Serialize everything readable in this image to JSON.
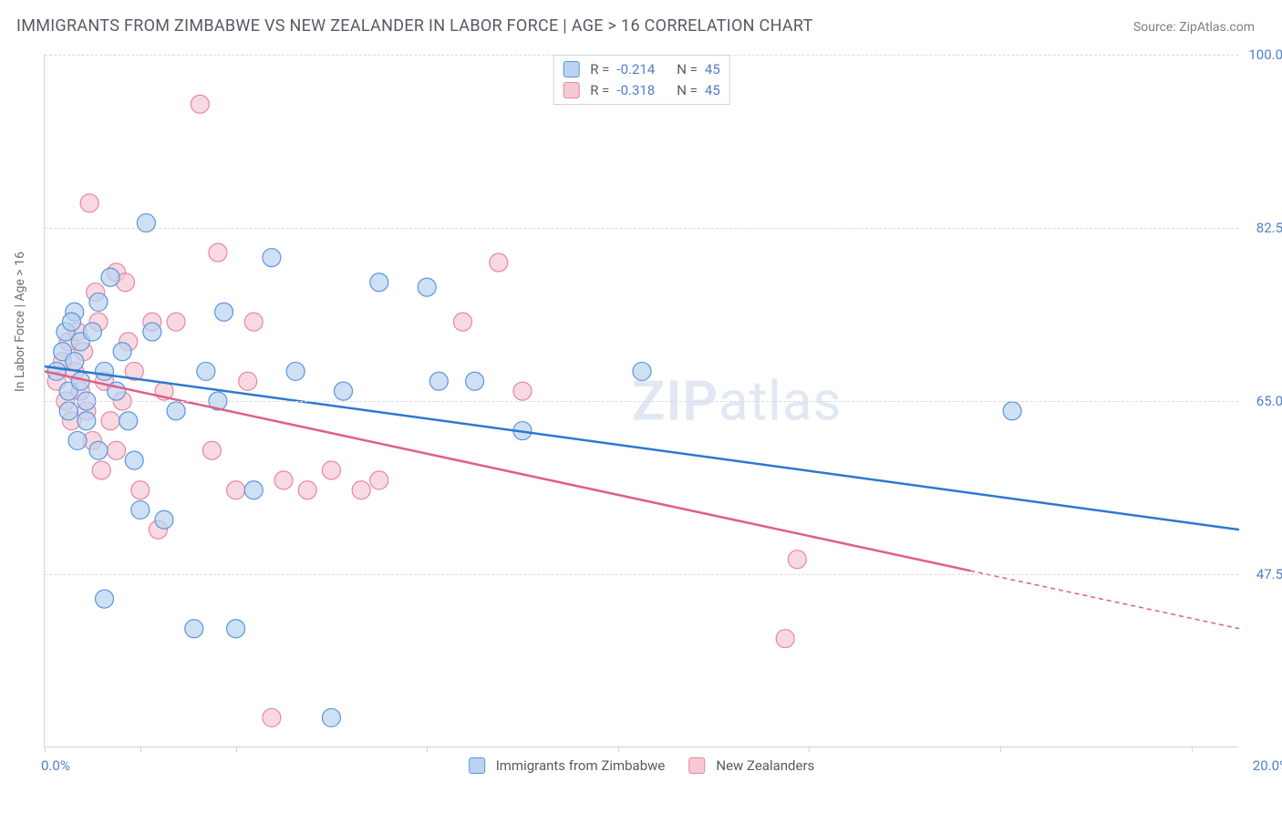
{
  "header": {
    "title": "IMMIGRANTS FROM ZIMBABWE VS NEW ZEALANDER IN LABOR FORCE | AGE > 16 CORRELATION CHART",
    "source": "Source: ZipAtlas.com"
  },
  "chart": {
    "type": "scatter",
    "ylabel": "In Labor Force | Age > 16",
    "xlim": [
      0.0,
      20.0
    ],
    "ylim": [
      30.0,
      100.0
    ],
    "xlim_labels": {
      "min": "0.0%",
      "max": "20.0%"
    },
    "xtick_positions_pct": [
      0,
      8,
      16,
      32,
      48,
      64,
      80,
      96
    ],
    "ytick_labels": [
      "100.0%",
      "82.5%",
      "65.0%",
      "47.5%"
    ],
    "ytick_values": [
      100.0,
      82.5,
      65.0,
      47.5
    ],
    "background_color": "#ffffff",
    "grid_color": "#d8dbe0",
    "axis_color": "#cfd3d9",
    "label_color": "#4f7ecb",
    "watermark": "ZIPatlas",
    "series": [
      {
        "key": "zimbabwe",
        "label": "Immigrants from Zimbabwe",
        "marker_fill": "#b9d3f0",
        "marker_stroke": "#5a95dd",
        "marker_radius": 10,
        "marker_opacity": 0.7,
        "line_color": "#2f77d1",
        "line_width": 2.5,
        "r": "-0.214",
        "n": "45",
        "trend": {
          "x1": 0.0,
          "y1": 68.5,
          "x2": 20.0,
          "y2": 52.0
        },
        "points": [
          [
            0.2,
            68
          ],
          [
            0.3,
            70
          ],
          [
            0.35,
            72
          ],
          [
            0.4,
            66
          ],
          [
            0.4,
            64
          ],
          [
            0.5,
            69
          ],
          [
            0.5,
            74
          ],
          [
            0.6,
            71
          ],
          [
            0.6,
            67
          ],
          [
            0.7,
            63
          ],
          [
            0.7,
            65
          ],
          [
            0.8,
            72
          ],
          [
            0.9,
            75
          ],
          [
            0.9,
            60
          ],
          [
            1.0,
            68
          ],
          [
            1.1,
            77.5
          ],
          [
            1.2,
            66
          ],
          [
            1.3,
            70
          ],
          [
            1.4,
            63
          ],
          [
            1.5,
            59
          ],
          [
            1.7,
            83
          ],
          [
            1.8,
            72
          ],
          [
            2.0,
            53
          ],
          [
            2.2,
            64
          ],
          [
            2.5,
            42
          ],
          [
            2.7,
            68
          ],
          [
            3.0,
            74
          ],
          [
            3.2,
            42
          ],
          [
            3.5,
            56
          ],
          [
            3.8,
            79.5
          ],
          [
            4.2,
            68
          ],
          [
            4.8,
            33
          ],
          [
            5.0,
            66
          ],
          [
            5.6,
            77
          ],
          [
            6.4,
            76.5
          ],
          [
            6.6,
            67
          ],
          [
            8.0,
            62
          ],
          [
            10.0,
            68
          ],
          [
            7.2,
            67
          ],
          [
            1.0,
            45
          ],
          [
            1.6,
            54
          ],
          [
            2.9,
            65
          ],
          [
            0.45,
            73
          ],
          [
            0.55,
            61
          ],
          [
            16.2,
            64
          ]
        ]
      },
      {
        "key": "newzealand",
        "label": "New Zealanders",
        "marker_fill": "#f6c9d4",
        "marker_stroke": "#e986a2",
        "marker_radius": 10,
        "marker_opacity": 0.7,
        "line_color": "#e05f85",
        "line_width": 2.5,
        "r": "-0.318",
        "n": "45",
        "trend": {
          "x1": 0.0,
          "y1": 68.0,
          "x2": 20.0,
          "y2": 42.0
        },
        "points": [
          [
            0.2,
            67
          ],
          [
            0.3,
            69
          ],
          [
            0.35,
            65
          ],
          [
            0.4,
            71
          ],
          [
            0.45,
            63
          ],
          [
            0.5,
            68
          ],
          [
            0.55,
            72
          ],
          [
            0.6,
            66
          ],
          [
            0.65,
            70
          ],
          [
            0.7,
            64
          ],
          [
            0.75,
            85
          ],
          [
            0.8,
            61
          ],
          [
            0.9,
            73
          ],
          [
            0.95,
            58
          ],
          [
            1.0,
            67
          ],
          [
            1.1,
            63
          ],
          [
            1.2,
            78
          ],
          [
            1.2,
            60
          ],
          [
            1.3,
            65
          ],
          [
            1.4,
            71
          ],
          [
            1.5,
            68
          ],
          [
            1.6,
            56
          ],
          [
            1.8,
            73
          ],
          [
            1.9,
            52
          ],
          [
            2.0,
            66
          ],
          [
            2.2,
            73
          ],
          [
            2.6,
            95
          ],
          [
            2.8,
            60
          ],
          [
            2.9,
            80
          ],
          [
            3.2,
            56
          ],
          [
            3.4,
            67
          ],
          [
            3.5,
            73
          ],
          [
            3.8,
            33
          ],
          [
            4.0,
            57
          ],
          [
            4.4,
            56
          ],
          [
            4.8,
            58
          ],
          [
            5.3,
            56
          ],
          [
            5.6,
            57
          ],
          [
            7.0,
            73
          ],
          [
            7.6,
            79
          ],
          [
            12.4,
            41
          ],
          [
            12.6,
            49
          ],
          [
            1.35,
            77
          ],
          [
            0.85,
            76
          ],
          [
            8.0,
            66
          ]
        ]
      }
    ],
    "legend_labels": {
      "r": "R =",
      "n": "N ="
    }
  }
}
